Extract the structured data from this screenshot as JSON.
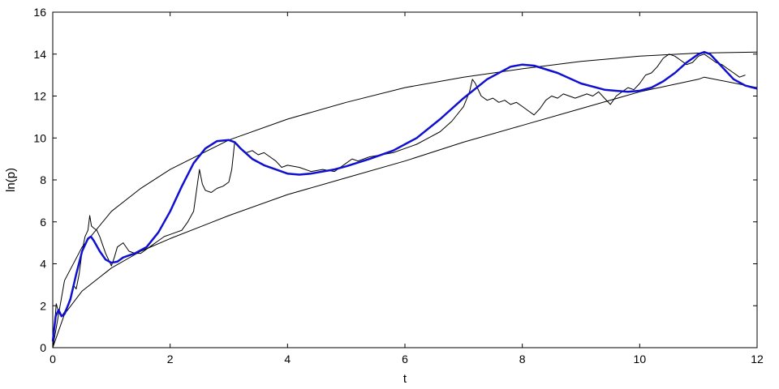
{
  "chart_data": {
    "type": "line",
    "title": "",
    "xlabel": "t",
    "ylabel": "ln(p)",
    "xlim": [
      0,
      12
    ],
    "ylim": [
      0,
      16
    ],
    "xticks": [
      0,
      2,
      4,
      6,
      8,
      10,
      12
    ],
    "yticks": [
      0,
      2,
      4,
      6,
      8,
      10,
      12,
      14,
      16
    ],
    "grid": false,
    "legend": "none",
    "colors": {
      "price": "#000000",
      "bounds": "#000000",
      "model": "#1010d0"
    },
    "series": [
      {
        "style": "thin-black-price",
        "x": [
          0.0,
          0.03,
          0.06,
          0.1,
          0.15,
          0.2,
          0.25,
          0.3,
          0.35,
          0.4,
          0.45,
          0.5,
          0.55,
          0.6,
          0.63,
          0.66,
          0.7,
          0.75,
          0.8,
          0.9,
          1.0,
          1.05,
          1.1,
          1.2,
          1.3,
          1.4,
          1.5,
          1.6,
          1.7,
          1.8,
          1.9,
          2.0,
          2.1,
          2.2,
          2.3,
          2.4,
          2.45,
          2.5,
          2.55,
          2.6,
          2.7,
          2.8,
          2.9,
          3.0,
          3.05,
          3.1,
          3.15,
          3.2,
          3.3,
          3.4,
          3.5,
          3.6,
          3.7,
          3.8,
          3.9,
          4.0,
          4.2,
          4.4,
          4.6,
          4.8,
          5.0,
          5.1,
          5.2,
          5.4,
          5.6,
          5.8,
          6.0,
          6.2,
          6.4,
          6.6,
          6.8,
          7.0,
          7.1,
          7.15,
          7.2,
          7.3,
          7.4,
          7.5,
          7.6,
          7.7,
          7.8,
          7.9,
          8.0,
          8.1,
          8.2,
          8.3,
          8.4,
          8.5,
          8.6,
          8.7,
          8.8,
          8.9,
          9.0,
          9.1,
          9.2,
          9.3,
          9.4,
          9.5,
          9.6,
          9.7,
          9.8,
          9.9,
          10.0,
          10.1,
          10.2,
          10.3,
          10.4,
          10.5,
          10.6,
          10.7,
          10.8,
          10.9,
          11.0,
          11.1,
          11.2,
          11.3,
          11.4,
          11.5,
          11.6,
          11.7,
          11.8
        ],
        "y": [
          0.0,
          1.0,
          2.1,
          1.7,
          1.5,
          1.7,
          2.0,
          2.4,
          3.0,
          2.8,
          3.5,
          4.6,
          5.3,
          5.6,
          6.3,
          5.8,
          5.7,
          5.6,
          5.3,
          4.5,
          3.9,
          4.3,
          4.8,
          5.0,
          4.6,
          4.5,
          4.5,
          4.7,
          4.9,
          5.1,
          5.3,
          5.4,
          5.5,
          5.6,
          6.0,
          6.5,
          7.5,
          8.5,
          7.8,
          7.5,
          7.4,
          7.6,
          7.7,
          7.9,
          8.5,
          9.8,
          9.7,
          9.5,
          9.3,
          9.4,
          9.2,
          9.3,
          9.1,
          8.9,
          8.6,
          8.7,
          8.6,
          8.4,
          8.5,
          8.4,
          8.8,
          9.0,
          8.9,
          9.1,
          9.2,
          9.3,
          9.5,
          9.7,
          10.0,
          10.3,
          10.8,
          11.5,
          12.2,
          12.8,
          12.6,
          12.0,
          11.8,
          11.9,
          11.7,
          11.8,
          11.6,
          11.7,
          11.5,
          11.3,
          11.1,
          11.4,
          11.8,
          12.0,
          11.9,
          12.1,
          12.0,
          11.9,
          12.0,
          12.1,
          12.0,
          12.2,
          11.9,
          11.6,
          12.0,
          12.2,
          12.4,
          12.3,
          12.6,
          13.0,
          13.1,
          13.4,
          13.8,
          14.0,
          13.9,
          13.7,
          13.5,
          13.6,
          13.9,
          14.0,
          13.8,
          13.6,
          13.5,
          13.3,
          13.1,
          12.9,
          13.0
        ]
      },
      {
        "style": "upper-bound",
        "x": [
          0.0,
          0.2,
          0.5,
          1.0,
          1.5,
          2.0,
          3.0,
          4.0,
          5.0,
          6.0,
          7.0,
          8.0,
          9.0,
          10.0,
          11.0,
          12.0
        ],
        "y": [
          0.0,
          3.2,
          4.8,
          6.5,
          7.6,
          8.5,
          9.9,
          10.9,
          11.7,
          12.4,
          12.9,
          13.3,
          13.65,
          13.9,
          14.05,
          14.1
        ]
      },
      {
        "style": "lower-bound",
        "x": [
          0.0,
          0.2,
          0.5,
          1.0,
          1.5,
          2.0,
          3.0,
          4.0,
          5.0,
          6.0,
          7.0,
          8.0,
          9.0,
          10.0,
          11.0,
          11.1,
          12.0
        ],
        "y": [
          0.0,
          1.6,
          2.7,
          3.8,
          4.6,
          5.2,
          6.3,
          7.3,
          8.1,
          8.9,
          9.8,
          10.6,
          11.4,
          12.2,
          12.8,
          12.9,
          12.4
        ]
      },
      {
        "style": "thick-blue-model",
        "x": [
          0.0,
          0.05,
          0.1,
          0.15,
          0.2,
          0.3,
          0.4,
          0.5,
          0.6,
          0.65,
          0.7,
          0.8,
          0.9,
          1.0,
          1.1,
          1.2,
          1.4,
          1.6,
          1.8,
          2.0,
          2.2,
          2.4,
          2.6,
          2.8,
          3.0,
          3.1,
          3.2,
          3.4,
          3.6,
          3.8,
          4.0,
          4.2,
          4.4,
          4.6,
          4.8,
          5.0,
          5.4,
          5.8,
          6.2,
          6.6,
          7.0,
          7.4,
          7.8,
          8.0,
          8.2,
          8.6,
          9.0,
          9.4,
          9.8,
          10.0,
          10.2,
          10.4,
          10.6,
          10.8,
          11.0,
          11.1,
          11.2,
          11.4,
          11.6,
          11.8,
          12.0
        ],
        "y": [
          0.3,
          1.5,
          1.8,
          1.5,
          1.6,
          2.3,
          3.5,
          4.6,
          5.2,
          5.3,
          5.1,
          4.6,
          4.2,
          4.05,
          4.1,
          4.3,
          4.5,
          4.8,
          5.5,
          6.5,
          7.7,
          8.8,
          9.5,
          9.85,
          9.9,
          9.8,
          9.5,
          9.0,
          8.7,
          8.5,
          8.3,
          8.25,
          8.3,
          8.4,
          8.5,
          8.65,
          9.0,
          9.4,
          10.0,
          10.9,
          11.9,
          12.8,
          13.4,
          13.5,
          13.45,
          13.1,
          12.6,
          12.3,
          12.2,
          12.25,
          12.4,
          12.7,
          13.1,
          13.6,
          14.0,
          14.1,
          14.0,
          13.4,
          12.8,
          12.5,
          12.35
        ]
      }
    ]
  }
}
